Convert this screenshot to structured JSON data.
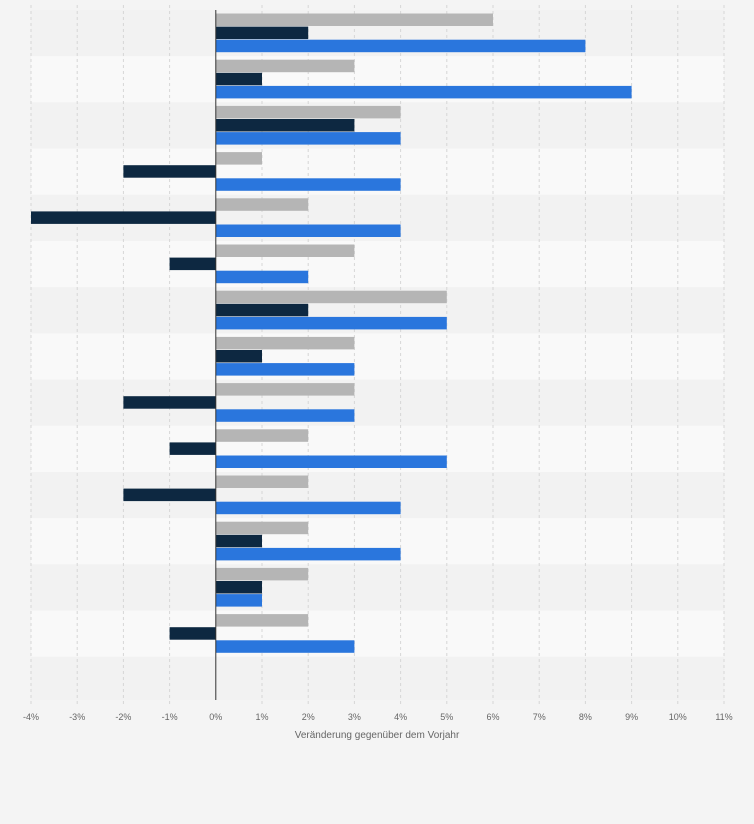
{
  "chart_data": {
    "type": "bar",
    "orientation": "horizontal",
    "xlabel": "Veränderung gegenüber dem Vorjahr",
    "ylabel": "",
    "xlim": [
      -4,
      11
    ],
    "ticks": [
      -4,
      -3,
      -2,
      -1,
      0,
      1,
      2,
      3,
      4,
      5,
      6,
      7,
      8,
      9,
      10,
      11
    ],
    "tick_labels": [
      "-4%",
      "-3%",
      "-2%",
      "-1%",
      "0%",
      "1%",
      "2%",
      "3%",
      "4%",
      "5%",
      "6%",
      "7%",
      "8%",
      "9%",
      "10%",
      "11%"
    ],
    "grid": true,
    "legend": "none",
    "categories": [
      "",
      "",
      "",
      "",
      "",
      "",
      "",
      "",
      "",
      "",
      "",
      "",
      "",
      ""
    ],
    "series": [
      {
        "color": "#b5b5b5",
        "values": [
          6,
          3,
          4,
          1,
          2,
          3,
          5,
          3,
          3,
          2,
          2,
          2,
          2,
          2
        ]
      },
      {
        "color": "#0d2841",
        "values": [
          2,
          1,
          3,
          -2,
          -4,
          -1,
          2,
          1,
          -2,
          -1,
          -2,
          1,
          1,
          -1
        ]
      },
      {
        "color": "#2a76dd",
        "values": [
          8,
          9,
          4,
          4,
          4,
          2,
          5,
          3,
          3,
          5,
          4,
          4,
          1,
          3
        ]
      }
    ]
  }
}
